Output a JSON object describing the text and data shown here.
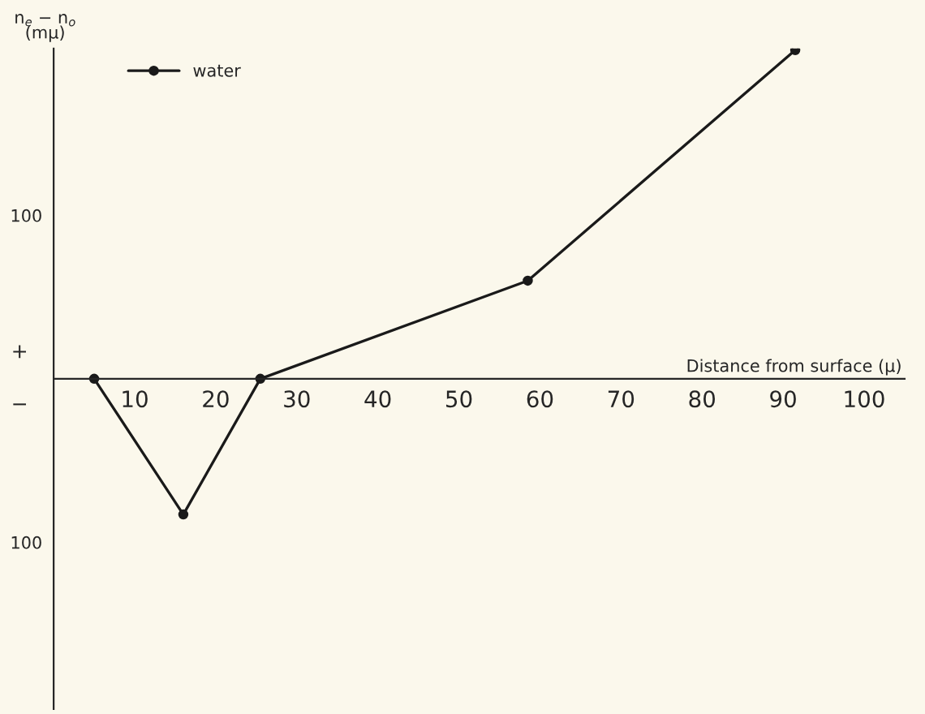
{
  "chart_data": {
    "type": "line",
    "xlabel": "Distance from surface (μ)",
    "ylabel": "n$_{e}$ − n$_{o}$\n(mμ)",
    "x": [
      5,
      16,
      25.5,
      58.5,
      91.5
    ],
    "series": [
      {
        "name": "water",
        "color": "#1a1a1a",
        "values": [
          0,
          -83,
          0,
          60,
          201
        ]
      }
    ],
    "xlim": [
      0,
      105
    ],
    "ylim": [
      -202,
      202
    ],
    "xticks": [
      10,
      20,
      30,
      40,
      50,
      60,
      70,
      80,
      90,
      100
    ],
    "yticks": [
      {
        "value": 100,
        "label": "100"
      },
      {
        "value": -100,
        "label": "100"
      }
    ],
    "annotations": [
      "+",
      "−"
    ],
    "marker": "circle",
    "line_style": "solid",
    "grid": false,
    "legend": "top left"
  }
}
